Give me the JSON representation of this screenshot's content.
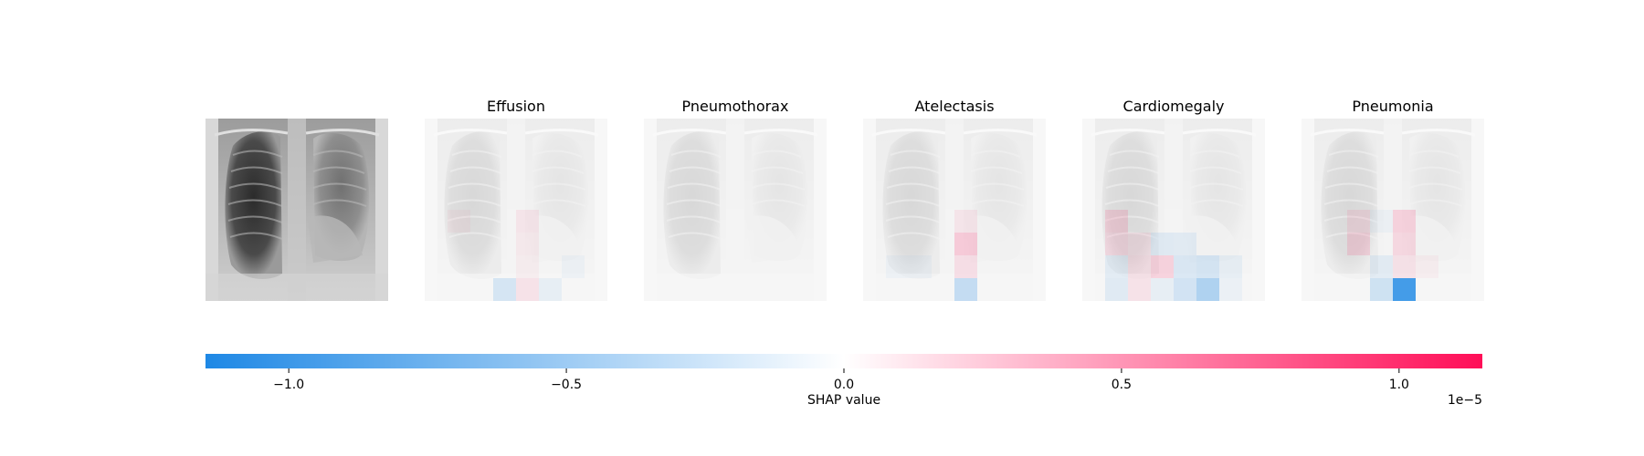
{
  "chart_data": {
    "type": "heatmap",
    "title": "",
    "input_panel": {
      "title": ""
    },
    "panels": [
      {
        "title": "Effusion",
        "grid_size": 8,
        "cells": [
          {
            "row": 4,
            "col": 1,
            "value": 0.05
          },
          {
            "row": 4,
            "col": 4,
            "value": 0.08
          },
          {
            "row": 5,
            "col": 4,
            "value": 0.06
          },
          {
            "row": 6,
            "col": 4,
            "value": 0.05
          },
          {
            "row": 7,
            "col": 3,
            "value": -0.18
          },
          {
            "row": 7,
            "col": 4,
            "value": 0.1
          },
          {
            "row": 7,
            "col": 5,
            "value": -0.08
          },
          {
            "row": 6,
            "col": 6,
            "value": -0.05
          }
        ]
      },
      {
        "title": "Pneumothorax",
        "grid_size": 8,
        "cells": []
      },
      {
        "title": "Atelectasis",
        "grid_size": 8,
        "cells": [
          {
            "row": 4,
            "col": 4,
            "value": 0.08
          },
          {
            "row": 5,
            "col": 4,
            "value": 0.22
          },
          {
            "row": 6,
            "col": 4,
            "value": 0.12
          },
          {
            "row": 7,
            "col": 4,
            "value": -0.28
          },
          {
            "row": 6,
            "col": 1,
            "value": -0.05
          },
          {
            "row": 6,
            "col": 2,
            "value": -0.05
          }
        ]
      },
      {
        "title": "Cardiomegaly",
        "grid_size": 8,
        "cells": [
          {
            "row": 4,
            "col": 1,
            "value": 0.15
          },
          {
            "row": 5,
            "col": 1,
            "value": 0.12
          },
          {
            "row": 5,
            "col": 2,
            "value": 0.08
          },
          {
            "row": 5,
            "col": 3,
            "value": -0.12
          },
          {
            "row": 5,
            "col": 4,
            "value": -0.1
          },
          {
            "row": 6,
            "col": 1,
            "value": -0.1
          },
          {
            "row": 6,
            "col": 2,
            "value": 0.1
          },
          {
            "row": 6,
            "col": 3,
            "value": 0.18
          },
          {
            "row": 6,
            "col": 4,
            "value": -0.15
          },
          {
            "row": 6,
            "col": 5,
            "value": -0.18
          },
          {
            "row": 6,
            "col": 6,
            "value": -0.08
          },
          {
            "row": 7,
            "col": 1,
            "value": -0.12
          },
          {
            "row": 7,
            "col": 2,
            "value": 0.1
          },
          {
            "row": 7,
            "col": 3,
            "value": -0.08
          },
          {
            "row": 7,
            "col": 4,
            "value": -0.2
          },
          {
            "row": 7,
            "col": 5,
            "value": -0.4
          },
          {
            "row": 7,
            "col": 6,
            "value": -0.06
          }
        ]
      },
      {
        "title": "Pneumonia",
        "grid_size": 8,
        "cells": [
          {
            "row": 4,
            "col": 2,
            "value": 0.1
          },
          {
            "row": 5,
            "col": 2,
            "value": 0.15
          },
          {
            "row": 4,
            "col": 3,
            "value": -0.05
          },
          {
            "row": 4,
            "col": 4,
            "value": 0.18
          },
          {
            "row": 5,
            "col": 4,
            "value": 0.15
          },
          {
            "row": 6,
            "col": 4,
            "value": 0.1
          },
          {
            "row": 6,
            "col": 3,
            "value": -0.1
          },
          {
            "row": 7,
            "col": 3,
            "value": -0.22
          },
          {
            "row": 7,
            "col": 4,
            "value": -1.0
          },
          {
            "row": 6,
            "col": 5,
            "value": 0.05
          }
        ]
      }
    ],
    "colorbar": {
      "label": "SHAP value",
      "min": -1.15,
      "max": 1.15,
      "ticks": [
        -1.0,
        -0.5,
        0.0,
        0.5,
        1.0
      ],
      "tick_labels": [
        "−1.0",
        "−0.5",
        "0.0",
        "0.5",
        "1.0"
      ],
      "offset_text": "1e−5",
      "negative_color": "#1e88e5",
      "positive_color": "#ff0d57",
      "orientation": "horizontal"
    }
  }
}
